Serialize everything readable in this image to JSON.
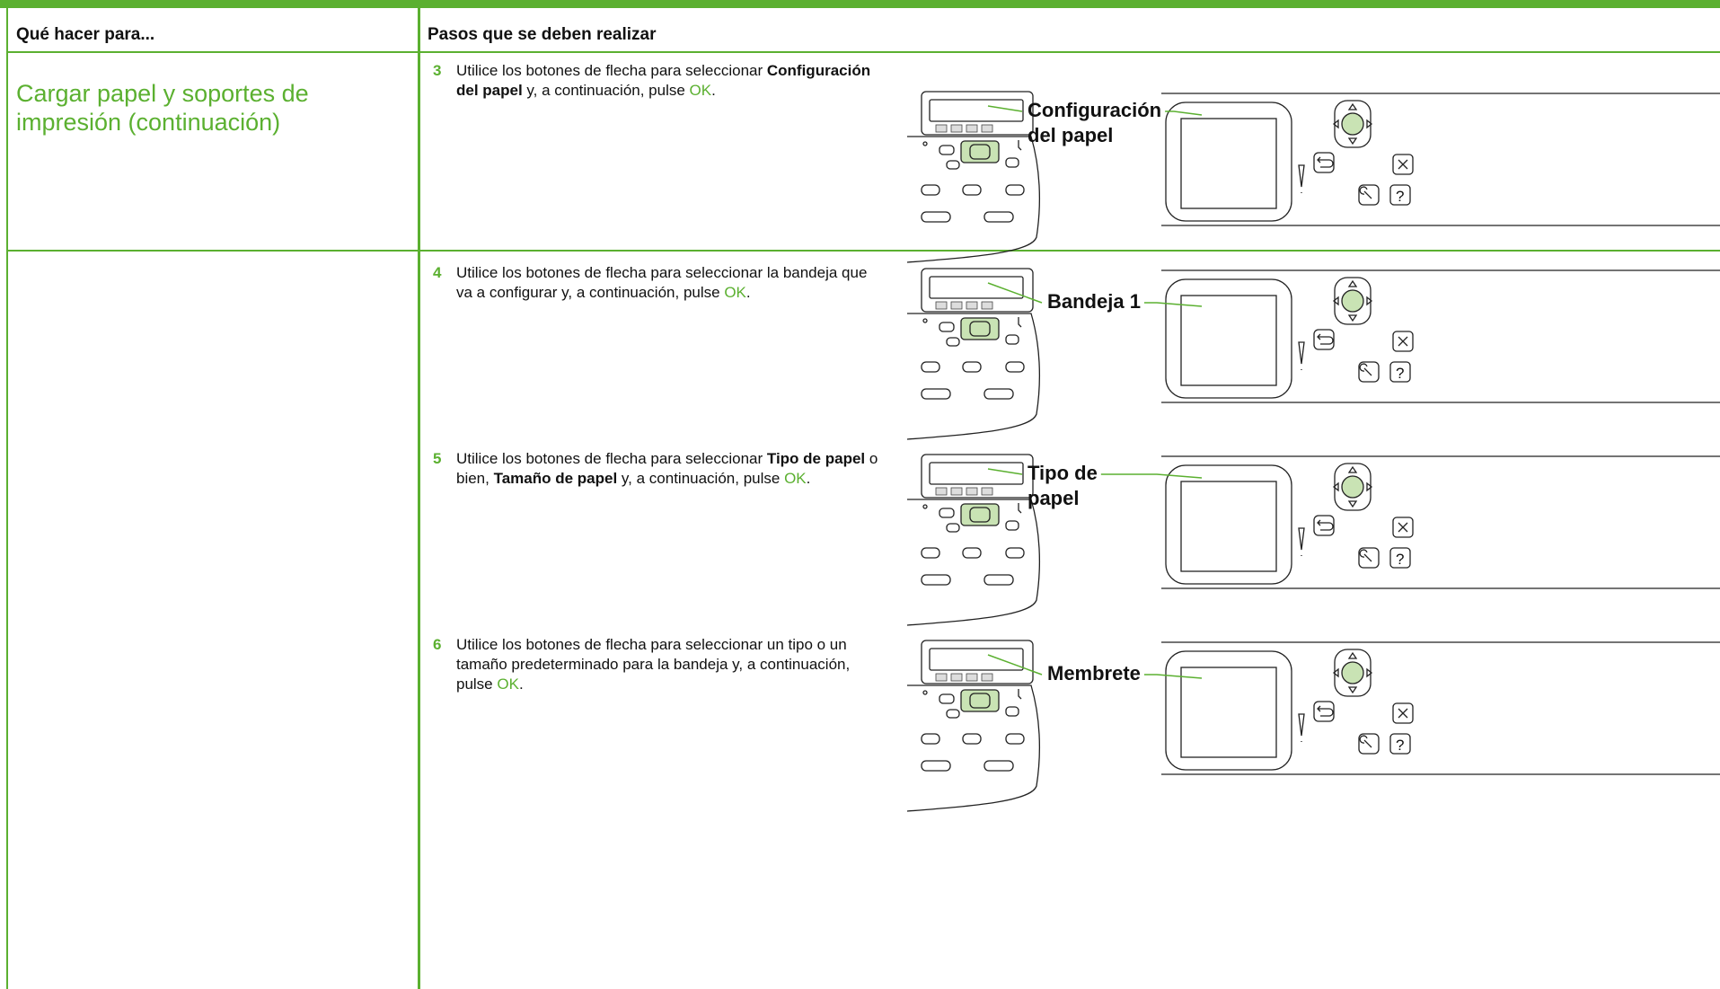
{
  "header": {
    "col1": "Qué hacer para...",
    "col2": "Pasos que se deben realizar"
  },
  "rows": [
    {
      "task": "Cargar papel y soportes de impresión (continuación)",
      "steps": [
        {
          "number": "3",
          "text": [
            {
              "text": "Utilice los botones de flecha para seleccionar "
            },
            {
              "text": "Configuración del papel",
              "style": "bold"
            },
            {
              "text": " y, a continuación, pulse "
            },
            {
              "text": "OK",
              "style": "green"
            },
            {
              "text": "."
            }
          ],
          "callout": [
            "Configuración",
            "del papel"
          ]
        }
      ]
    },
    {
      "steps": [
        {
          "number": "4",
          "text": [
            {
              "text": "Utilice los botones de flecha para seleccionar la bandeja que va a configurar y, a continuación, pulse "
            },
            {
              "text": "OK",
              "style": "green"
            },
            {
              "text": "."
            }
          ],
          "callout": [
            "Bandeja 1"
          ]
        },
        {
          "number": "5",
          "text": [
            {
              "text": "Utilice los botones de flecha para seleccionar "
            },
            {
              "text": "Tipo de papel",
              "style": "bold"
            },
            {
              "text": " o bien, "
            },
            {
              "text": "Tamaño de papel",
              "style": "bold"
            },
            {
              "text": " y, a continuación, pulse "
            },
            {
              "text": "OK",
              "style": "green"
            },
            {
              "text": "."
            }
          ],
          "callout": [
            "Tipo de",
            "papel"
          ]
        },
        {
          "number": "6",
          "text": [
            {
              "text": "Utilice los botones de flecha para seleccionar un tipo o un tamaño predeterminado para la bandeja y, a continuación, pulse "
            },
            {
              "text": "OK",
              "style": "green"
            },
            {
              "text": "."
            }
          ],
          "callout": [
            "Membrete"
          ]
        }
      ]
    }
  ]
}
